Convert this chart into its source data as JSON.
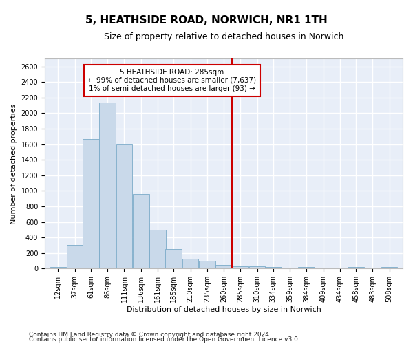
{
  "title": "5, HEATHSIDE ROAD, NORWICH, NR1 1TH",
  "subtitle": "Size of property relative to detached houses in Norwich",
  "xlabel": "Distribution of detached houses by size in Norwich",
  "ylabel": "Number of detached properties",
  "bar_color": "#c9d9ea",
  "bar_edge_color": "#7aaac8",
  "background_color": "#e8eef8",
  "grid_color": "#ffffff",
  "property_line_x": 285,
  "property_line_color": "#cc0000",
  "annotation_title": "5 HEATHSIDE ROAD: 285sqm",
  "annotation_line1": "← 99% of detached houses are smaller (7,637)",
  "annotation_line2": "1% of semi-detached houses are larger (93) →",
  "annotation_box_color": "white",
  "annotation_box_edge": "#cc0000",
  "footer1": "Contains HM Land Registry data © Crown copyright and database right 2024.",
  "footer2": "Contains public sector information licensed under the Open Government Licence v3.0.",
  "bin_edges": [
    12,
    37,
    61,
    86,
    111,
    136,
    161,
    185,
    210,
    235,
    260,
    285,
    310,
    334,
    359,
    384,
    409,
    434,
    458,
    483,
    508
  ],
  "counts": [
    25,
    300,
    1670,
    2140,
    1595,
    960,
    500,
    250,
    125,
    100,
    50,
    30,
    30,
    20,
    0,
    20,
    0,
    0,
    20,
    0,
    20
  ],
  "ylim": [
    0,
    2700
  ],
  "yticks": [
    0,
    200,
    400,
    600,
    800,
    1000,
    1200,
    1400,
    1600,
    1800,
    2000,
    2200,
    2400,
    2600
  ],
  "title_fontsize": 11,
  "subtitle_fontsize": 9,
  "axis_label_fontsize": 8,
  "tick_fontsize": 7,
  "footer_fontsize": 6.5
}
